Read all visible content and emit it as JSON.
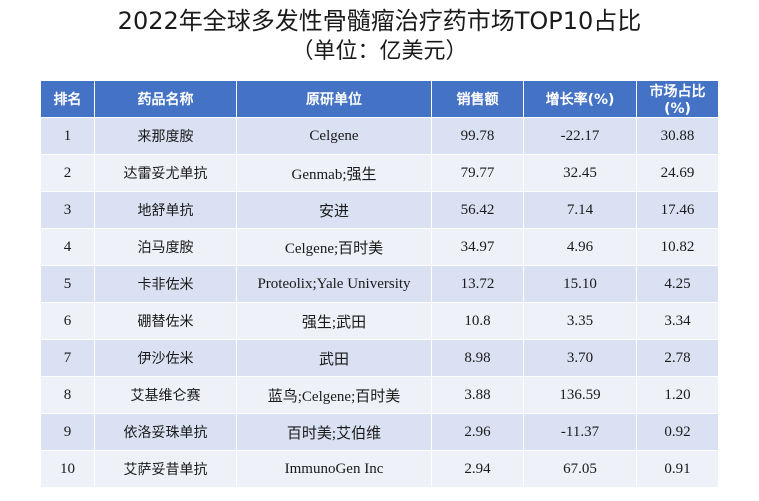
{
  "title": "2022年全球多发性骨髓瘤治疗药市场TOP10占比",
  "subtitle": "（单位：亿美元）",
  "table": {
    "headers": [
      "排名",
      "药品名称",
      "原研单位",
      "销售额",
      "增长率(%)",
      "市场占比(%)"
    ],
    "rows": [
      [
        "1",
        "来那度胺",
        "Celgene",
        "99.78",
        "-22.17",
        "30.88"
      ],
      [
        "2",
        "达雷妥尤单抗",
        "Genmab;强生",
        "79.77",
        "32.45",
        "24.69"
      ],
      [
        "3",
        "地舒单抗",
        "安进",
        "56.42",
        "7.14",
        "17.46"
      ],
      [
        "4",
        "泊马度胺",
        "Celgene;百时美",
        "34.97",
        "4.96",
        "10.82"
      ],
      [
        "5",
        "卡非佐米",
        "Proteolix;Yale University",
        "13.72",
        "15.10",
        "4.25"
      ],
      [
        "6",
        "硼替佐米",
        "强生;武田",
        "10.8",
        "3.35",
        "3.34"
      ],
      [
        "7",
        "伊沙佐米",
        "武田",
        "8.98",
        "3.70",
        "2.78"
      ],
      [
        "8",
        "艾基维仑赛",
        "蓝鸟;Celgene;百时美",
        "3.88",
        "136.59",
        "1.20"
      ],
      [
        "9",
        "依洛妥珠单抗",
        "百时美;艾伯维",
        "2.96",
        "-11.37",
        "0.92"
      ],
      [
        "10",
        "艾萨妥昔单抗",
        "ImmunoGen Inc",
        "2.94",
        "67.05",
        "0.91"
      ]
    ]
  }
}
